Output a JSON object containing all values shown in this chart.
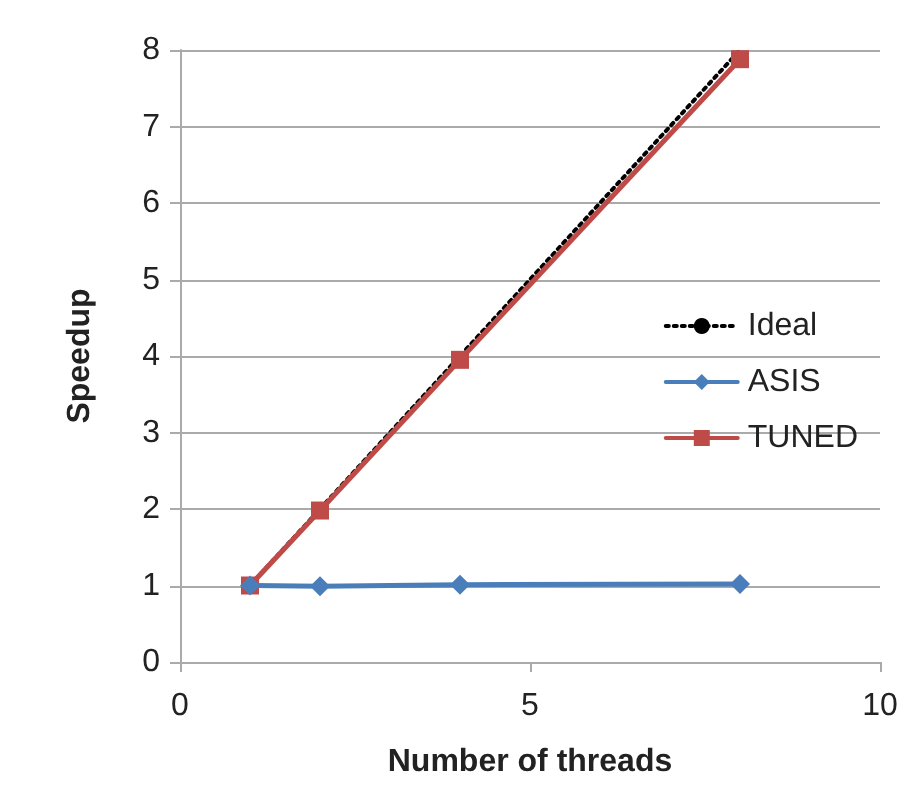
{
  "chart_data": {
    "type": "line",
    "xlabel": "Number of threads",
    "ylabel": "Speedup",
    "x": [
      1,
      2,
      4,
      8
    ],
    "series": [
      {
        "name": "Ideal",
        "color": "#000000",
        "values": [
          1,
          2,
          4,
          8
        ],
        "line_style": "dotted",
        "marker": "none"
      },
      {
        "name": "ASIS",
        "color": "#4a7ebb",
        "values": [
          1,
          0.99,
          1.01,
          1.02
        ],
        "line_style": "solid",
        "marker": "diamond"
      },
      {
        "name": "TUNED",
        "color": "#be4b48",
        "values": [
          1,
          1.98,
          3.95,
          7.88
        ],
        "line_style": "solid",
        "marker": "square"
      }
    ],
    "xlim": [
      0,
      10
    ],
    "xticks": [
      0,
      5,
      10
    ],
    "ylim": [
      0,
      8
    ],
    "yticks": [
      0,
      1,
      2,
      3,
      4,
      5,
      6,
      7,
      8
    ],
    "grid": "y",
    "legend": "right"
  }
}
